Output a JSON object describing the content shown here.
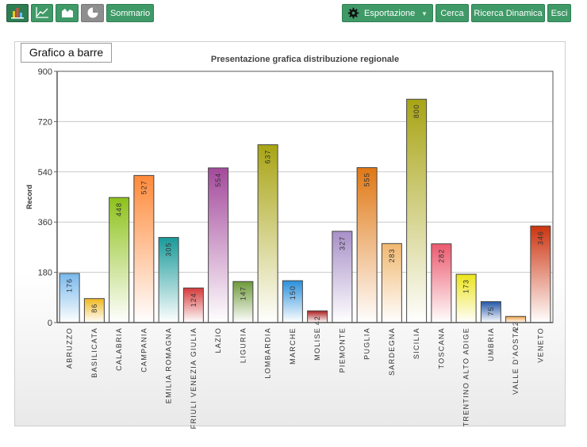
{
  "toolbar": {
    "chart_type_buttons": [
      {
        "icon": "bar-chart-icon"
      },
      {
        "icon": "line-chart-icon"
      },
      {
        "icon": "area-chart-icon"
      },
      {
        "icon": "pie-chart-icon"
      }
    ],
    "summary_label": "Sommario",
    "export_label": "Esportazione",
    "search_label": "Cerca",
    "dynamic_search_label": "Ricerca Dinamica",
    "exit_label": "Esci"
  },
  "tab_label": "Grafico a barre",
  "chart_data": {
    "type": "bar",
    "title": "Presentazione grafica distribuzione regionale",
    "ylabel": "Record",
    "xlabel": "",
    "ylim": [
      0,
      900
    ],
    "yticks": [
      "0",
      "180",
      "360",
      "540",
      "720",
      "900"
    ],
    "grid": true,
    "categories": [
      "ABRUZZO",
      "BASILICATA",
      "CALABRIA",
      "CAMPANIA",
      "EMILIA ROMAGNA",
      "FRIULI VENEZIA GIULIA",
      "LAZIO",
      "LIGURIA",
      "LOMBARDIA",
      "MARCHE",
      "MOLISE",
      "PIEMONTE",
      "PUGLIA",
      "SARDEGNA",
      "SICILIA",
      "TOSCANA",
      "TRENTINO ALTO ADIGE",
      "UMBRIA",
      "VALLE D'AOSTA",
      "VENETO"
    ],
    "values": [
      176,
      86,
      448,
      527,
      305,
      124,
      554,
      147,
      637,
      150,
      42,
      327,
      555,
      283,
      800,
      282,
      173,
      75,
      22,
      346
    ],
    "colors": [
      "#78b8ec",
      "#f0b81e",
      "#8ec21c",
      "#ff8a3a",
      "#1a9a9a",
      "#d63a3a",
      "#a44a9c",
      "#6e9a3a",
      "#a8a414",
      "#2a90dc",
      "#aa1c1c",
      "#a890c8",
      "#e07814",
      "#f0b870",
      "#a8a414",
      "#ec5a6e",
      "#ece41a",
      "#2256a8",
      "#f0a040",
      "#cc3410"
    ]
  }
}
